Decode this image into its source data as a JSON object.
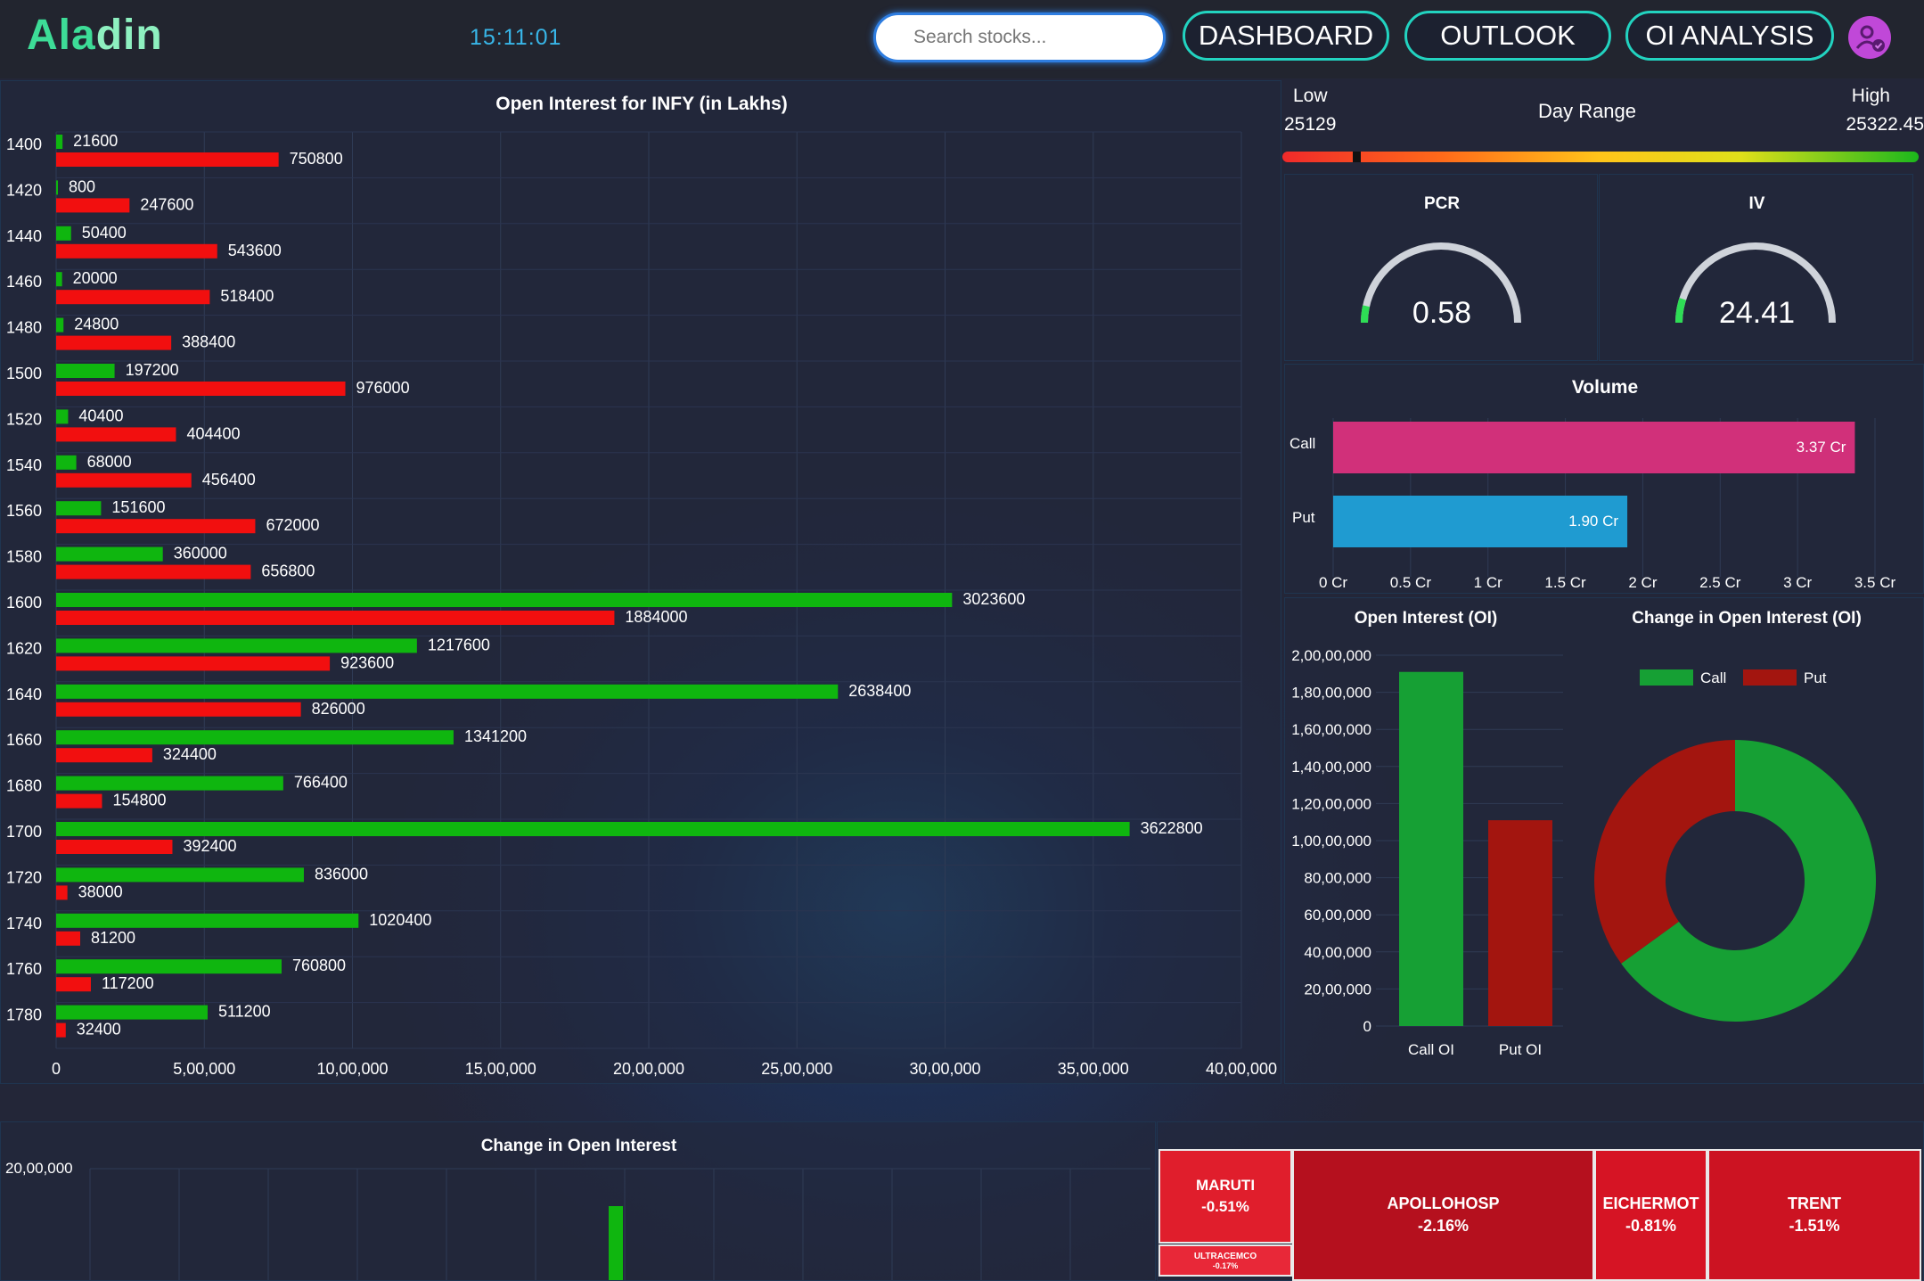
{
  "header": {
    "logo_part1": "Ala",
    "logo_part2": "din",
    "time": "15:11:01",
    "search_placeholder": "Search stocks...",
    "nav": [
      "DASHBOARD",
      "OUTLOOK",
      "OI ANALYSIS"
    ],
    "avatar_icon": "user-check-icon"
  },
  "oi_chart": {
    "chart_data": {
      "type": "bar",
      "orientation": "horizontal",
      "title": "Open Interest for INFY (in Lakhs)",
      "categories": [
        "1400",
        "1420",
        "1440",
        "1460",
        "1480",
        "1500",
        "1520",
        "1540",
        "1560",
        "1580",
        "1600",
        "1620",
        "1640",
        "1660",
        "1680",
        "1700",
        "1720",
        "1740",
        "1760",
        "1780"
      ],
      "series": [
        {
          "color": "#0fb60f",
          "values": [
            21600,
            800,
            50400,
            20000,
            24800,
            197200,
            40400,
            68000,
            151600,
            360000,
            3023600,
            1217600,
            2638400,
            1341200,
            766400,
            3622800,
            836000,
            1020400,
            760800,
            511200
          ]
        },
        {
          "color": "#f20f0f",
          "values": [
            750800,
            247600,
            543600,
            518400,
            388400,
            976000,
            404400,
            456400,
            672000,
            656800,
            1884000,
            923600,
            826000,
            324400,
            154800,
            392400,
            38000,
            81200,
            117200,
            32400
          ]
        }
      ],
      "xlim": [
        0,
        4000000
      ],
      "xticks": [
        "0",
        "5,00,000",
        "10,00,000",
        "15,00,000",
        "20,00,000",
        "25,00,000",
        "30,00,000",
        "35,00,000",
        "40,00,000"
      ]
    }
  },
  "day_range": {
    "low_label": "Low",
    "low_value": "25129",
    "title": "Day Range",
    "high_label": "High",
    "high_value": "25322.45",
    "marker_fraction": 0.11
  },
  "pcr": {
    "title": "PCR",
    "value": "0.58",
    "fill_fraction": 0.07
  },
  "iv": {
    "title": "IV",
    "value": "24.41",
    "fill_fraction": 0.1
  },
  "volume": {
    "chart_data": {
      "type": "bar",
      "orientation": "horizontal",
      "title": "Volume",
      "categories": [
        "Call",
        "Put"
      ],
      "values": [
        3.37,
        1.9
      ],
      "value_labels": [
        "3.37 Cr",
        "1.90 Cr"
      ],
      "colors": [
        "#d1307a",
        "#1f9bd1"
      ],
      "xlim": [
        0,
        3.5
      ],
      "xticks": [
        "0 Cr",
        "0.5 Cr",
        "1 Cr",
        "1.5 Cr",
        "2 Cr",
        "2.5 Cr",
        "3 Cr",
        "3.5 Cr"
      ]
    }
  },
  "oi_totals": {
    "chart_data": {
      "type": "bar",
      "title": "Open Interest (OI)",
      "categories": [
        "Call OI",
        "Put OI"
      ],
      "values": [
        19100000,
        11100000
      ],
      "colors": [
        "#16a034",
        "#a3150f"
      ],
      "ylim": [
        0,
        20000000
      ],
      "yticks": [
        "0",
        "20,00,000",
        "40,00,000",
        "60,00,000",
        "80,00,000",
        "1,00,00,000",
        "1,20,00,000",
        "1,40,00,000",
        "1,60,00,000",
        "1,80,00,000",
        "2,00,00,000"
      ]
    }
  },
  "oi_change_pie": {
    "chart_data": {
      "type": "pie",
      "title": "Change in Open Interest (OI)",
      "labels": [
        "Call",
        "Put"
      ],
      "values": [
        65,
        35
      ],
      "colors": [
        "#16a034",
        "#a3150f"
      ],
      "legend": "top"
    }
  },
  "change_oi": {
    "chart_data": {
      "type": "bar",
      "title": "Change in Open Interest",
      "yticks_visible": [
        "20,00,000"
      ]
    }
  },
  "heatmap": {
    "tiles": [
      {
        "name": "MARUTI",
        "change": "-0.51%",
        "color": "#e01e2c"
      },
      {
        "name": "ULTRACEMCO",
        "change": "-0.17%",
        "color": "#e82838"
      },
      {
        "name": "APOLLOHOSP",
        "change": "-2.16%",
        "color": "#b5101e"
      },
      {
        "name": "EICHERMOT",
        "change": "-0.81%",
        "color": "#d61424"
      },
      {
        "name": "TRENT",
        "change": "-1.51%",
        "color": "#cc1322"
      }
    ]
  }
}
